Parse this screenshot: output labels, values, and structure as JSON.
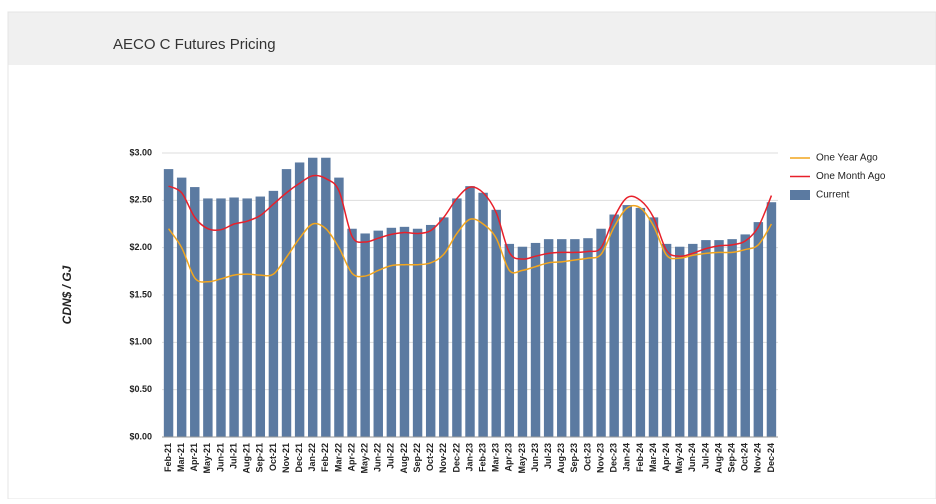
{
  "chart_data": {
    "type": "bar",
    "title": "AECO C Futures Pricing",
    "y_label": "CDN$ / GJ",
    "categories": [
      "Feb-21",
      "Mar-21",
      "Apr-21",
      "May-21",
      "Jun-21",
      "Jul-21",
      "Aug-21",
      "Sep-21",
      "Oct-21",
      "Nov-21",
      "Dec-21",
      "Jan-22",
      "Feb-22",
      "Mar-22",
      "Apr-22",
      "May-22",
      "Jun-22",
      "Jul-22",
      "Aug-22",
      "Sep-22",
      "Oct-22",
      "Nov-22",
      "Dec-22",
      "Jan-23",
      "Feb-23",
      "Mar-23",
      "Apr-23",
      "May-23",
      "Jun-23",
      "Jul-23",
      "Aug-23",
      "Sep-23",
      "Oct-23",
      "Nov-23",
      "Dec-23",
      "Jan-24",
      "Feb-24",
      "Mar-24",
      "Apr-24",
      "May-24",
      "Jun-24",
      "Jul-24",
      "Aug-24",
      "Sep-24",
      "Oct-24",
      "Nov-24",
      "Dec-24"
    ],
    "series": [
      {
        "name": "One Year Ago",
        "type": "line",
        "color": "#f2a61f",
        "values": [
          2.2,
          2.0,
          1.68,
          1.64,
          1.67,
          1.71,
          1.72,
          1.71,
          1.72,
          1.9,
          2.1,
          2.25,
          2.2,
          2.0,
          1.73,
          1.7,
          1.76,
          1.81,
          1.82,
          1.82,
          1.84,
          1.93,
          2.15,
          2.3,
          2.25,
          2.1,
          1.76,
          1.76,
          1.8,
          1.84,
          1.85,
          1.87,
          1.89,
          1.93,
          2.22,
          2.42,
          2.42,
          2.23,
          1.92,
          1.89,
          1.92,
          1.94,
          1.95,
          1.95,
          1.98,
          2.03,
          2.25
        ]
      },
      {
        "name": "One Month Ago",
        "type": "line",
        "color": "#e8202a",
        "values": [
          2.65,
          2.58,
          2.32,
          2.2,
          2.19,
          2.25,
          2.28,
          2.34,
          2.46,
          2.58,
          2.68,
          2.76,
          2.73,
          2.6,
          2.12,
          2.06,
          2.1,
          2.14,
          2.16,
          2.15,
          2.18,
          2.32,
          2.52,
          2.64,
          2.58,
          2.37,
          1.95,
          1.88,
          1.91,
          1.94,
          1.95,
          1.95,
          1.96,
          2.0,
          2.32,
          2.53,
          2.5,
          2.32,
          1.97,
          1.91,
          1.94,
          1.99,
          2.02,
          2.03,
          2.07,
          2.22,
          2.55
        ]
      },
      {
        "name": "Current",
        "type": "bar",
        "color": "#5b7aa1",
        "values": [
          2.83,
          2.74,
          2.64,
          2.52,
          2.52,
          2.53,
          2.52,
          2.54,
          2.6,
          2.83,
          2.9,
          2.95,
          2.95,
          2.74,
          2.2,
          2.15,
          2.18,
          2.21,
          2.22,
          2.2,
          2.24,
          2.32,
          2.52,
          2.65,
          2.58,
          2.4,
          2.04,
          2.01,
          2.05,
          2.09,
          2.09,
          2.09,
          2.1,
          2.2,
          2.35,
          2.45,
          2.42,
          2.32,
          2.04,
          2.01,
          2.04,
          2.08,
          2.08,
          2.09,
          2.14,
          2.27,
          2.48
        ]
      }
    ],
    "ylim": [
      0,
      3
    ],
    "yticks": [
      {
        "value": 0,
        "label": "$0.00"
      },
      {
        "value": 0.5,
        "label": "$0.50"
      },
      {
        "value": 1,
        "label": "$1.00"
      },
      {
        "value": 1.5,
        "label": "$1.50"
      },
      {
        "value": 2,
        "label": "$2.00"
      },
      {
        "value": 2.5,
        "label": "$2.50"
      },
      {
        "value": 3,
        "label": "$3.00"
      }
    ],
    "grid": true,
    "legend": "right"
  }
}
